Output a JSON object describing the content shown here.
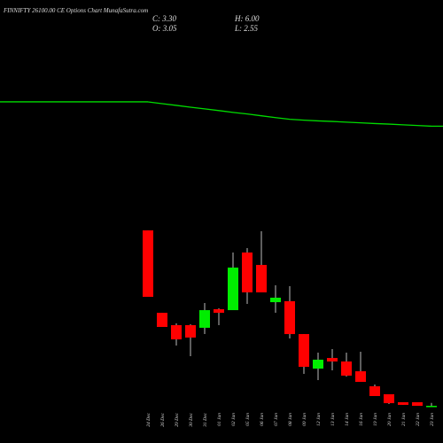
{
  "chart_data": {
    "type": "candlestick",
    "title": "FINNIFTY 26100.00 CE Options Chart MunafaSutra.com",
    "header": [
      "C: 3.30",
      "O: 3.05",
      "H: 6.00",
      "L: 2.55"
    ],
    "categories": [
      "24 Dec",
      "26 Dec",
      "29 Dec",
      "30 Dec",
      "31 Dec",
      "01 Jan",
      "02 Jan",
      "05 Jan",
      "06 Jan",
      "07 Jan",
      "08 Jan",
      "09 Jan",
      "12 Jan",
      "13 Jan",
      "14 Jan",
      "16 Jan",
      "19 Jan",
      "20 Jan",
      "21 Jan",
      "22 Jan",
      "23 Jan"
    ],
    "open": [
      168.3,
      90.8,
      79.2,
      79.2,
      76.7,
      94.2,
      93.3,
      147.5,
      135.8,
      100.8,
      101.7,
      70.8,
      38.3,
      48.3,
      45,
      35.8,
      21.7,
      14.2,
      6.7,
      6.7,
      3.05
    ],
    "high": [
      168.3,
      90.8,
      80.8,
      80,
      100,
      95,
      147.5,
      151.7,
      167.5,
      116.7,
      115.8,
      70.8,
      53.3,
      56.7,
      53.3,
      54.2,
      23.3,
      14.2,
      6.7,
      6.7,
      6
    ],
    "low": [
      105.8,
      77.5,
      60,
      50,
      70.8,
      79.2,
      93.3,
      99.2,
      110,
      90.8,
      66.7,
      33.3,
      27.5,
      36.7,
      30.8,
      25.8,
      12.5,
      5,
      4.2,
      3.3,
      2.55
    ],
    "close": [
      105.8,
      77.5,
      65.8,
      67.5,
      93.3,
      90.8,
      133.3,
      110,
      110,
      105,
      70.8,
      40,
      46.7,
      45,
      31.7,
      25.8,
      12.5,
      5.8,
      4.2,
      3.3,
      3.3
    ],
    "moving_average": {
      "color": "#00dd00",
      "values": [
        289.2,
        287.5,
        285.9,
        284.2,
        282.6,
        281,
        279.3,
        277.8,
        276.1,
        274.4,
        272.8,
        272,
        271.3,
        270.8,
        270.1,
        269.5,
        268.8,
        268.3,
        267.6,
        267,
        266.3
      ]
    },
    "up_color": "#00ee00",
    "down_color": "#ff0000",
    "ylim": [
      0,
      385
    ]
  }
}
